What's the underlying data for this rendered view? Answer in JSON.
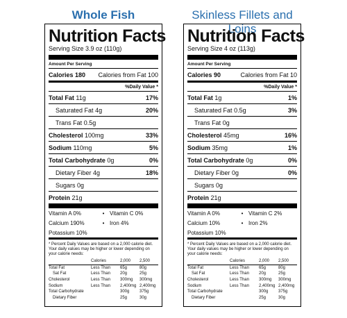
{
  "columns": [
    {
      "heading": "Whole Fish",
      "title": "Nutrition Facts",
      "serving": "Serving Size 3.9 oz (110g)",
      "amount_per_serving": "Amount Per Serving",
      "calories_label": "Calories 180",
      "calories_fat": "Calories from Fat 100",
      "dv_header": "%Daily Value *",
      "nutrients": {
        "total_fat": {
          "label": "Total Fat",
          "amt": "11g",
          "dv": "17%"
        },
        "sat_fat": {
          "label": "Saturated Fat",
          "amt": "4g",
          "dv": "20%"
        },
        "trans_fat": {
          "label": "Trans Fat",
          "amt": "0.5g",
          "dv": ""
        },
        "cholesterol": {
          "label": "Cholesterol",
          "amt": "100mg",
          "dv": "33%"
        },
        "sodium": {
          "label": "Sodium",
          "amt": "110mg",
          "dv": "5%"
        },
        "carb": {
          "label": "Total Carbohydrate",
          "amt": "0g",
          "dv": "0%"
        },
        "fiber": {
          "label": "Dietary Fiber",
          "amt": "4g",
          "dv": "18%"
        },
        "sugars": {
          "label": "Sugars",
          "amt": "0g",
          "dv": ""
        },
        "protein": {
          "label": "Protein",
          "amt": "21g",
          "dv": ""
        }
      },
      "vitamins": [
        {
          "a": "Vitamin A 0%",
          "dot": "•",
          "b": "Vitamin C 0%"
        },
        {
          "a": "Calcium 190%",
          "dot": "•",
          "b": "Iron 4%"
        },
        {
          "a": "Potassium  10%",
          "dot": "",
          "b": ""
        }
      ]
    },
    {
      "heading": "Skinless Fillets and Loins",
      "title": "Nutrition Facts",
      "serving": "Serving Size 4 oz (113g)",
      "amount_per_serving": "Amount Per Serving",
      "calories_label": "Calories 90",
      "calories_fat": "Calories from Fat 10",
      "dv_header": "%Daily Value *",
      "nutrients": {
        "total_fat": {
          "label": "Total Fat",
          "amt": "1g",
          "dv": "1%"
        },
        "sat_fat": {
          "label": "Saturated Fat",
          "amt": "0.5g",
          "dv": "3%"
        },
        "trans_fat": {
          "label": "Trans Fat",
          "amt": "0g",
          "dv": ""
        },
        "cholesterol": {
          "label": "Cholesterol",
          "amt": "45mg",
          "dv": "16%"
        },
        "sodium": {
          "label": "Sodium",
          "amt": "35mg",
          "dv": "1%"
        },
        "carb": {
          "label": "Total Carbohydrate",
          "amt": "0g",
          "dv": "0%"
        },
        "fiber": {
          "label": "Dietary Fiber",
          "amt": "0g",
          "dv": "0%"
        },
        "sugars": {
          "label": "Sugars",
          "amt": "0g",
          "dv": ""
        },
        "protein": {
          "label": "Protein",
          "amt": "21g",
          "dv": ""
        }
      },
      "vitamins": [
        {
          "a": "Vitamin A 0%",
          "dot": "•",
          "b": "Vitamin C 2%"
        },
        {
          "a": "Calcium 10%",
          "dot": "•",
          "b": "Iron 2%"
        },
        {
          "a": "Potassium  10%",
          "dot": "",
          "b": ""
        }
      ]
    }
  ],
  "footnote": "* Percent Daily Values are based on a 2,000 calorie diet. Your daily values may be higher or lower depending on your calorie needs:",
  "footer_table": {
    "header": [
      "",
      "Calories",
      "2,000",
      "2,500"
    ],
    "rows": [
      [
        "Total Fat",
        "Less Than",
        "65g",
        "80g"
      ],
      [
        "Sat Fat",
        "Less Than",
        "20g",
        "25g"
      ],
      [
        "Cholesterol",
        "Less Than",
        "300mg",
        "300mg"
      ],
      [
        "Sodium",
        "Less Than",
        "2,400mg",
        "2,400mg"
      ],
      [
        "Total Carbohydrate",
        "",
        "300g",
        "375g"
      ],
      [
        "Dietary Fiber",
        "",
        "25g",
        "30g"
      ]
    ]
  },
  "colors": {
    "heading": "#2a6fae"
  }
}
